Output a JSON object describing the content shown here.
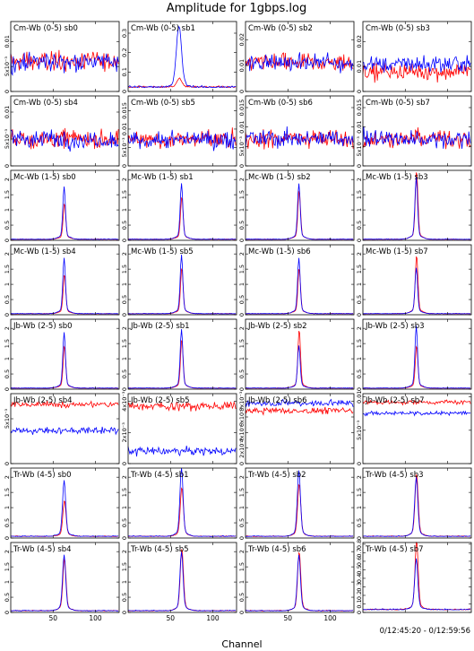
{
  "chart_data": {
    "type": "line",
    "title": "Amplitude for 1gbps.log",
    "xlabel": "Channel",
    "time_range": "0/12:45:20 - 0/12:59:56",
    "x_ticks": [
      "50",
      "100"
    ],
    "xlim": [
      0,
      128
    ],
    "series_colors": {
      "red": "#ff0000",
      "blue": "#0000ff"
    },
    "panels": [
      {
        "label": "Cm-Wb (0-5)  sb0",
        "ylim": [
          0,
          0.014
        ],
        "yticks": [
          0,
          0.005,
          0.01
        ],
        "yticklabels": [
          "0",
          "5x10⁻³",
          "0.01"
        ],
        "kind": "noise",
        "red_level": 0.006,
        "blue_level": 0.006,
        "noise": 0.0028
      },
      {
        "label": "Cm-Wb (0-5)  sb1",
        "ylim": [
          0,
          0.36
        ],
        "yticks": [
          0,
          0.1,
          0.2,
          0.3
        ],
        "yticklabels": [
          "0",
          "0.1",
          "0.2",
          "0.3"
        ],
        "kind": "peak",
        "peak_blue": 0.29,
        "peak_red": 0.04,
        "peak_ch": 60,
        "width": 3,
        "base": 0.02
      },
      {
        "label": "Cm-Wb (0-5)  sb2",
        "ylim": [
          0,
          0.027
        ],
        "yticks": [
          0,
          0.01,
          0.02
        ],
        "yticklabels": [
          "0",
          "0.01",
          "0.02"
        ],
        "kind": "noise",
        "red_level": 0.011,
        "blue_level": 0.011,
        "noise": 0.005
      },
      {
        "label": "Cm-Wb (0-5)  sb3",
        "ylim": [
          0,
          0.028
        ],
        "yticks": [
          0,
          0.01,
          0.02
        ],
        "yticklabels": [
          "0",
          "0.01",
          "0.02"
        ],
        "kind": "noise",
        "red_level": 0.008,
        "blue_level": 0.011,
        "noise": 0.005
      },
      {
        "label": "Cm-Wb (0-5)  sb4",
        "ylim": [
          0,
          0.013
        ],
        "yticks": [
          0,
          0.005,
          0.01
        ],
        "yticklabels": [
          "0",
          "5x10⁻³",
          "0.01"
        ],
        "kind": "noise",
        "red_level": 0.005,
        "blue_level": 0.005,
        "noise": 0.0025
      },
      {
        "label": "Cm-Wb (0-5)  sb5",
        "ylim": [
          0,
          0.019
        ],
        "yticks": [
          0,
          0.005,
          0.01,
          0.015
        ],
        "yticklabels": [
          "0",
          "5x10⁻³",
          "0.01",
          "0.015"
        ],
        "kind": "noise",
        "red_level": 0.007,
        "blue_level": 0.007,
        "noise": 0.0035
      },
      {
        "label": "Cm-Wb (0-5)  sb6",
        "ylim": [
          0,
          0.018
        ],
        "yticks": [
          0,
          0.005,
          0.01,
          0.015
        ],
        "yticklabels": [
          "0",
          "5x10⁻³",
          "0.01",
          "0.015"
        ],
        "kind": "noise",
        "red_level": 0.007,
        "blue_level": 0.007,
        "noise": 0.0035
      },
      {
        "label": "Cm-Wb (0-5)  sb7",
        "ylim": [
          0,
          0.018
        ],
        "yticks": [
          0,
          0.005,
          0.01,
          0.015
        ],
        "yticklabels": [
          "0",
          "5x10⁻³",
          "0.01",
          "0.015"
        ],
        "kind": "noise",
        "red_level": 0.007,
        "blue_level": 0.007,
        "noise": 0.0035
      },
      {
        "label": "Mc-Wb (1-5)  sb0",
        "ylim": [
          0,
          2.3
        ],
        "yticks": [
          0,
          0.5,
          1,
          1.5,
          2
        ],
        "yticklabels": [
          "0",
          "0.5",
          "1",
          "1.5",
          "2"
        ],
        "kind": "peak",
        "peak_blue": 1.6,
        "peak_red": 1.1,
        "peak_ch": 63,
        "width": 1.5,
        "base": 0.03
      },
      {
        "label": "Mc-Wb (1-5)  sb1",
        "ylim": [
          0,
          2.3
        ],
        "yticks": [
          0,
          0.5,
          1,
          1.5,
          2
        ],
        "yticklabels": [
          "0",
          "0.5",
          "1",
          "1.5",
          "2"
        ],
        "kind": "peak",
        "peak_blue": 1.7,
        "peak_red": 1.3,
        "peak_ch": 63,
        "width": 1.5,
        "base": 0.03
      },
      {
        "label": "Mc-Wb (1-5)  sb2",
        "ylim": [
          0,
          2.3
        ],
        "yticks": [
          0,
          0.5,
          1,
          1.5,
          2
        ],
        "yticklabels": [
          "0",
          "0.5",
          "1",
          "1.5",
          "2"
        ],
        "kind": "peak",
        "peak_blue": 1.7,
        "peak_red": 1.5,
        "peak_ch": 63,
        "width": 1.5,
        "base": 0.03
      },
      {
        "label": "Mc-Wb (1-5)  sb3",
        "ylim": [
          0,
          2.3
        ],
        "yticks": [
          0,
          0.5,
          1,
          1.5,
          2
        ],
        "yticklabels": [
          "0",
          "0.5",
          "1",
          "1.5",
          "2"
        ],
        "kind": "peak",
        "peak_blue": 1.9,
        "peak_red": 2.1,
        "peak_ch": 63,
        "width": 1.5,
        "base": 0.03
      },
      {
        "label": "Mc-Wb (1-5)  sb4",
        "ylim": [
          0,
          2.3
        ],
        "yticks": [
          0,
          0.5,
          1,
          1.5,
          2
        ],
        "yticklabels": [
          "0",
          "0.5",
          "1",
          "1.5",
          "2"
        ],
        "kind": "peak",
        "peak_blue": 1.7,
        "peak_red": 1.2,
        "peak_ch": 63,
        "width": 1.5,
        "base": 0.03
      },
      {
        "label": "Mc-Wb (1-5)  sb5",
        "ylim": [
          0,
          2.3
        ],
        "yticks": [
          0,
          0.5,
          1,
          1.5,
          2
        ],
        "yticklabels": [
          "0",
          "0.5",
          "1",
          "1.5",
          "2"
        ],
        "kind": "peak",
        "peak_blue": 1.8,
        "peak_red": 1.4,
        "peak_ch": 63,
        "width": 1.5,
        "base": 0.03
      },
      {
        "label": "Mc-Wb (1-5)  sb6",
        "ylim": [
          0,
          2.3
        ],
        "yticks": [
          0,
          0.5,
          1,
          1.5,
          2
        ],
        "yticklabels": [
          "0",
          "0.5",
          "1",
          "1.5",
          "2"
        ],
        "kind": "peak",
        "peak_blue": 1.7,
        "peak_red": 1.4,
        "peak_ch": 63,
        "width": 1.5,
        "base": 0.03
      },
      {
        "label": "Mc-Wb (1-5)  sb7",
        "ylim": [
          0,
          2.3
        ],
        "yticks": [
          0,
          0.5,
          1,
          1.5,
          2
        ],
        "yticklabels": [
          "0",
          "0.5",
          "1",
          "1.5",
          "2"
        ],
        "kind": "peak",
        "peak_blue": 1.4,
        "peak_red": 1.8,
        "peak_ch": 63,
        "width": 1.5,
        "base": 0.03
      },
      {
        "label": "Jb-Wb (2-5)  sb0",
        "ylim": [
          0,
          2.3
        ],
        "yticks": [
          0,
          0.5,
          1,
          1.5,
          2
        ],
        "yticklabels": [
          "0",
          "0.5",
          "1",
          "1.5",
          "2"
        ],
        "kind": "peak",
        "peak_blue": 1.7,
        "peak_red": 1.3,
        "peak_ch": 63,
        "width": 1.5,
        "base": 0.03
      },
      {
        "label": "Jb-Wb (2-5)  sb1",
        "ylim": [
          0,
          2.3
        ],
        "yticks": [
          0,
          0.5,
          1,
          1.5,
          2
        ],
        "yticklabels": [
          "0",
          "0.5",
          "1",
          "1.5",
          "2"
        ],
        "kind": "peak",
        "peak_blue": 1.8,
        "peak_red": 1.5,
        "peak_ch": 63,
        "width": 1.5,
        "base": 0.03
      },
      {
        "label": "Jb-Wb (2-5)  sb2",
        "ylim": [
          0,
          2.3
        ],
        "yticks": [
          0,
          0.5,
          1,
          1.5,
          2
        ],
        "yticklabels": [
          "0",
          "0.5",
          "1",
          "1.5",
          "2"
        ],
        "kind": "peak",
        "peak_blue": 1.3,
        "peak_red": 1.8,
        "peak_ch": 63,
        "width": 1.5,
        "base": 0.03
      },
      {
        "label": "Jb-Wb (2-5)  sb3",
        "ylim": [
          0,
          2.3
        ],
        "yticks": [
          0,
          0.5,
          1,
          1.5,
          2
        ],
        "yticklabels": [
          "0",
          "0.5",
          "1",
          "1.5",
          "2"
        ],
        "kind": "peak",
        "peak_blue": 1.9,
        "peak_red": 1.3,
        "peak_ch": 63,
        "width": 1.5,
        "base": 0.03
      },
      {
        "label": "Jb-Wb (2-5)  sb4",
        "ylim": [
          0,
          0.0078
        ],
        "yticks": [
          0,
          0.005
        ],
        "yticklabels": [
          "0",
          "5x10⁻³"
        ],
        "kind": "noise",
        "red_level": 0.0066,
        "blue_level": 0.0037,
        "noise": 0.0005
      },
      {
        "label": "Jb-Wb (2-5)  sb5",
        "ylim": [
          0,
          0.0045
        ],
        "yticks": [
          0,
          0.002,
          0.004
        ],
        "yticklabels": [
          "0",
          "2x10⁻³",
          "4x10⁻³"
        ],
        "kind": "noise",
        "red_level": 0.0037,
        "blue_level": 0.0008,
        "noise": 0.0004
      },
      {
        "label": "Jb-Wb (2-5)  sb6",
        "ylim": [
          0,
          0.009
        ],
        "yticks": [
          0,
          0.002,
          0.004,
          0.006,
          0.008
        ],
        "yticklabels": [
          "0",
          "2x10⁻³",
          "4x10⁻³",
          "6x10⁻³",
          "8x10⁻³"
        ],
        "kind": "noise",
        "red_level": 0.0068,
        "blue_level": 0.0078,
        "noise": 0.0006
      },
      {
        "label": "Jb-Wb (2-5)  sb7",
        "ylim": [
          0,
          0.0105
        ],
        "yticks": [
          0,
          0.005,
          0.01
        ],
        "yticklabels": [
          "0",
          "5x10⁻³",
          "0.01"
        ],
        "kind": "noise",
        "red_level": 0.0092,
        "blue_level": 0.0076,
        "noise": 0.0005
      },
      {
        "label": "Tr-Wb (4-5)  sb0",
        "ylim": [
          0,
          2.3
        ],
        "yticks": [
          0,
          0.5,
          1,
          1.5,
          2
        ],
        "yticklabels": [
          "0",
          "0.5",
          "1",
          "1.5",
          "2"
        ],
        "kind": "peak",
        "peak_blue": 1.7,
        "peak_red": 1.1,
        "peak_ch": 63,
        "width": 1.8,
        "base": 0.05
      },
      {
        "label": "Tr-Wb (4-5)  sb1",
        "ylim": [
          0,
          2.3
        ],
        "yticks": [
          0,
          0.5,
          1,
          1.5,
          2
        ],
        "yticklabels": [
          "0",
          "0.5",
          "1",
          "1.5",
          "2"
        ],
        "kind": "peak",
        "peak_blue": 2.1,
        "peak_red": 1.5,
        "peak_ch": 63,
        "width": 1.8,
        "base": 0.05
      },
      {
        "label": "Tr-Wb (4-5)  sb2",
        "ylim": [
          0,
          2.3
        ],
        "yticks": [
          0,
          0.5,
          1,
          1.5,
          2
        ],
        "yticklabels": [
          "0",
          "0.5",
          "1",
          "1.5",
          "2"
        ],
        "kind": "peak",
        "peak_blue": 2.0,
        "peak_red": 1.6,
        "peak_ch": 63,
        "width": 1.8,
        "base": 0.05
      },
      {
        "label": "Tr-Wb (4-5)  sb3",
        "ylim": [
          0,
          2.3
        ],
        "yticks": [
          0,
          0.5,
          1,
          1.5,
          2
        ],
        "yticklabels": [
          "0",
          "0.5",
          "1",
          "1.5",
          "2"
        ],
        "kind": "peak",
        "peak_blue": 1.8,
        "peak_red": 1.9,
        "peak_ch": 63,
        "width": 1.8,
        "base": 0.05
      },
      {
        "label": "Tr-Wb (4-5)  sb4",
        "ylim": [
          0,
          2.3
        ],
        "yticks": [
          0,
          0.5,
          1,
          1.5,
          2
        ],
        "yticklabels": [
          "0",
          "0.5",
          "1",
          "1.5",
          "2"
        ],
        "kind": "peak",
        "peak_blue": 1.7,
        "peak_red": 1.6,
        "peak_ch": 63,
        "width": 1.8,
        "base": 0.05
      },
      {
        "label": "Tr-Wb (4-5)  sb5",
        "ylim": [
          0,
          2.3
        ],
        "yticks": [
          0,
          0.5,
          1,
          1.5,
          2
        ],
        "yticklabels": [
          "0",
          "0.5",
          "1",
          "1.5",
          "2"
        ],
        "kind": "peak",
        "peak_blue": 1.8,
        "peak_red": 1.9,
        "peak_ch": 63,
        "width": 1.8,
        "base": 0.05
      },
      {
        "label": "Tr-Wb (4-5)  sb6",
        "ylim": [
          0,
          2.3
        ],
        "yticks": [
          0,
          0.5,
          1,
          1.5,
          2
        ],
        "yticklabels": [
          "0",
          "0.5",
          "1",
          "1.5",
          "2"
        ],
        "kind": "peak",
        "peak_blue": 1.7,
        "peak_red": 1.8,
        "peak_ch": 63,
        "width": 1.8,
        "base": 0.05
      },
      {
        "label": "Tr-Wb (4-5)  sb7",
        "ylim": [
          0,
          0.82
        ],
        "yticks": [
          0,
          0.1,
          0.2,
          0.3,
          0.4,
          0.5,
          0.6,
          0.7,
          0.8
        ],
        "yticklabels": [
          "0",
          "0.1",
          "0.2",
          "0.3",
          "0.4",
          "0.5",
          "0.6",
          "0.7",
          "0.8"
        ],
        "kind": "peak",
        "peak_blue": 0.55,
        "peak_red": 0.75,
        "peak_ch": 63,
        "width": 1.8,
        "base": 0.03
      }
    ]
  }
}
